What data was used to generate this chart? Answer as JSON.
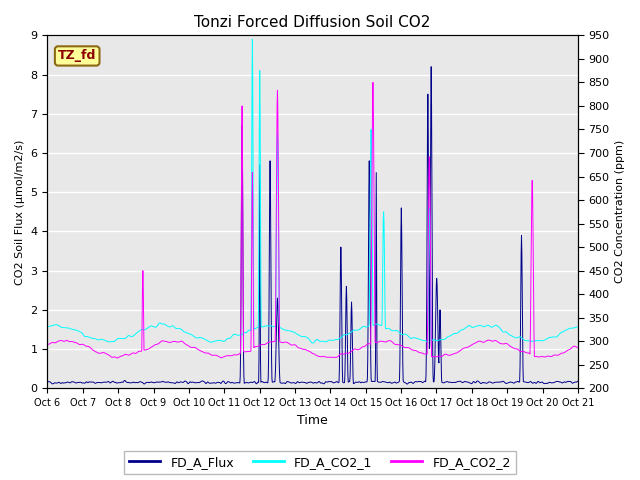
{
  "title": "Tonzi Forced Diffusion Soil CO2",
  "ylabel_left": "CO2 Soil Flux (μmol/m2/s)",
  "ylabel_right": "CO2 Concentration (ppm)",
  "xlabel": "Time",
  "ylim_left": [
    0.0,
    9.0
  ],
  "ylim_right": [
    200,
    950
  ],
  "yticks_left": [
    0.0,
    1.0,
    2.0,
    3.0,
    4.0,
    5.0,
    6.0,
    7.0,
    8.0,
    9.0
  ],
  "yticks_right": [
    200,
    250,
    300,
    350,
    400,
    450,
    500,
    550,
    600,
    650,
    700,
    750,
    800,
    850,
    900,
    950
  ],
  "xtick_labels": [
    "Oct 6",
    "Oct 7",
    "Oct 8",
    "Oct 9",
    "Oct 10",
    "Oct 11",
    "Oct 12",
    "Oct 13",
    "Oct 14",
    "Oct 15",
    "Oct 16",
    "Oct 17",
    "Oct 18",
    "Oct 19",
    "Oct 20",
    "Oct 21"
  ],
  "color_flux": "#00008B",
  "color_co2_1": "#00FFFF",
  "color_co2_2": "#FF00FF",
  "legend_labels": [
    "FD_A_Flux",
    "FD_A_CO2_1",
    "FD_A_CO2_2"
  ],
  "tag_label": "TZ_fd",
  "tag_color": "#FFFF99",
  "tag_border_color": "#8B6914",
  "tag_text_color": "#8B0000",
  "background_color": "#E8E8E8",
  "grid_color": "#FFFFFF",
  "n_points": 1440,
  "seed": 42
}
